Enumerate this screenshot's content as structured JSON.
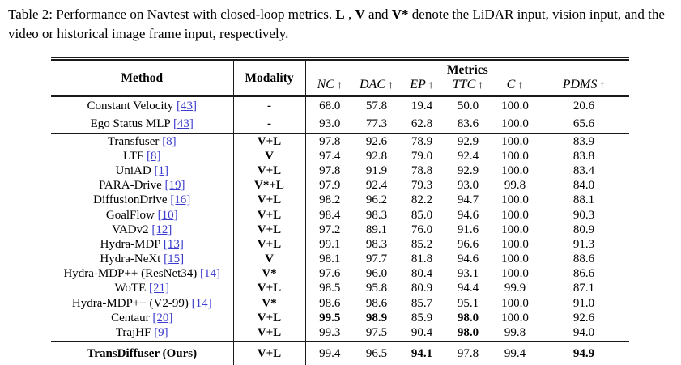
{
  "caption": {
    "parts": [
      {
        "text": "Table 2: Performance on Navtest with closed-loop metrics. ",
        "bold": false
      },
      {
        "text": "L",
        "bold": true
      },
      {
        "text": " , ",
        "bold": false
      },
      {
        "text": "V",
        "bold": true
      },
      {
        "text": " and ",
        "bold": false
      },
      {
        "text": "V*",
        "bold": true
      },
      {
        "text": " denote the LiDAR input, vision input, and the video or historical image frame input, respectively.",
        "bold": false
      }
    ]
  },
  "colors": {
    "citation_blue": "#3b3bcd",
    "rule_black": "#1a1a1a"
  },
  "table": {
    "headers": {
      "method": "Method",
      "modality": "Modality",
      "metrics_group": "Metrics",
      "metrics": [
        "NC",
        "DAC",
        "EP",
        "TTC",
        "C",
        "PDMS"
      ],
      "arrow": "↑"
    },
    "sections": [
      {
        "rows": [
          {
            "method": "Constant Velocity",
            "cite": "[43]",
            "modality": "-",
            "values": [
              "68.0",
              "57.8",
              "19.4",
              "50.0",
              "100.0",
              "20.6"
            ],
            "bold": []
          },
          {
            "method": "Ego Status MLP",
            "cite": "[43]",
            "modality": "-",
            "values": [
              "93.0",
              "77.3",
              "62.8",
              "83.6",
              "100.0",
              "65.6"
            ],
            "bold": []
          }
        ]
      },
      {
        "rows": [
          {
            "method": "Transfuser",
            "cite": "[8]",
            "modality": "V+L",
            "values": [
              "97.8",
              "92.6",
              "78.9",
              "92.9",
              "100.0",
              "83.9"
            ],
            "bold": []
          },
          {
            "method": "LTF",
            "cite": "[8]",
            "modality": "V",
            "values": [
              "97.4",
              "92.8",
              "79.0",
              "92.4",
              "100.0",
              "83.8"
            ],
            "bold": []
          },
          {
            "method": "UniAD",
            "cite": "[1]",
            "modality": "V+L",
            "values": [
              "97.8",
              "91.9",
              "78.8",
              "92.9",
              "100.0",
              "83.4"
            ],
            "bold": []
          },
          {
            "method": "PARA-Drive",
            "cite": "[19]",
            "modality": "V*+L",
            "values": [
              "97.9",
              "92.4",
              "79.3",
              "93.0",
              "99.8",
              "84.0"
            ],
            "bold": []
          },
          {
            "method": "DiffusionDrive",
            "cite": "[16]",
            "modality": "V+L",
            "values": [
              "98.2",
              "96.2",
              "82.2",
              "94.7",
              "100.0",
              "88.1"
            ],
            "bold": []
          },
          {
            "method": "GoalFlow",
            "cite": "[10]",
            "modality": "V+L",
            "values": [
              "98.4",
              "98.3",
              "85.0",
              "94.6",
              "100.0",
              "90.3"
            ],
            "bold": []
          },
          {
            "method": "VADv2",
            "cite": "[12]",
            "modality": "V+L",
            "values": [
              "97.2",
              "89.1",
              "76.0",
              "91.6",
              "100.0",
              "80.9"
            ],
            "bold": []
          },
          {
            "method": "Hydra-MDP",
            "cite": "[13]",
            "modality": "V+L",
            "values": [
              "99.1",
              "98.3",
              "85.2",
              "96.6",
              "100.0",
              "91.3"
            ],
            "bold": []
          },
          {
            "method": "Hydra-NeXt",
            "cite": "[15]",
            "modality": "V",
            "values": [
              "98.1",
              "97.7",
              "81.8",
              "94.6",
              "100.0",
              "88.6"
            ],
            "bold": []
          },
          {
            "method": "Hydra-MDP++ (ResNet34)",
            "cite": "[14]",
            "modality": "V*",
            "values": [
              "97.6",
              "96.0",
              "80.4",
              "93.1",
              "100.0",
              "86.6"
            ],
            "bold": []
          },
          {
            "method": "WoTE",
            "cite": "[21]",
            "modality": "V+L",
            "values": [
              "98.5",
              "95.8",
              "80.9",
              "94.4",
              "99.9",
              "87.1"
            ],
            "bold": []
          },
          {
            "method": "Hydra-MDP++ (V2-99)",
            "cite": "[14]",
            "modality": "V*",
            "values": [
              "98.6",
              "98.6",
              "85.7",
              "95.1",
              "100.0",
              "91.0"
            ],
            "bold": []
          },
          {
            "method": "Centaur",
            "cite": "[20]",
            "modality": "V+L",
            "values": [
              "99.5",
              "98.9",
              "85.9",
              "98.0",
              "100.0",
              "92.6"
            ],
            "bold": [
              0,
              1,
              3
            ]
          },
          {
            "method": "TrajHF",
            "cite": "[9]",
            "modality": "V+L",
            "values": [
              "99.3",
              "97.5",
              "90.4",
              "98.0",
              "99.8",
              "94.0"
            ],
            "bold": [
              3
            ]
          }
        ]
      },
      {
        "rows": [
          {
            "method": "TransDiffuser (Ours)",
            "cite": "",
            "method_bold": true,
            "modality": "V+L",
            "values": [
              "99.4",
              "96.5",
              "94.1",
              "97.8",
              "99.4",
              "94.9"
            ],
            "bold": [
              2,
              5
            ]
          }
        ]
      }
    ]
  }
}
